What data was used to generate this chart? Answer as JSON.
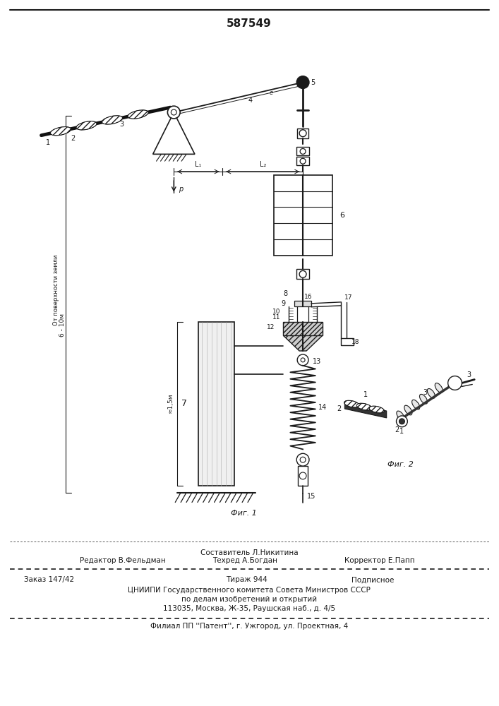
{
  "patent_number": "587549",
  "bg_color": "#ffffff",
  "line_color": "#1a1a1a",
  "fig1_caption": "Фиг. 1",
  "fig2_caption": "Фиг. 2",
  "footer_line1": "Составитель Л.Никитина",
  "footer_editor": "Редактор В.Фельдман",
  "footer_tech": "Техред А.Богдан",
  "footer_corrector": "Корректор Е.Папп",
  "footer_order": "Заказ 147/42",
  "footer_print": "Тираж 944",
  "footer_subscription": "Подписное",
  "footer_org": "ЦНИИПИ Государственного комитета Совета Министров СССР",
  "footer_dept": "по делам изобретений и открытий",
  "footer_addr": "113035, Москва, Ж-35, Раушская наб., д. 4/5",
  "footer_branch": "Филиал ПП ''Патент'', г. Ужгород, ул. Проектная, 4",
  "left_annotation": "От поверхности земли",
  "left_dim1": "6 - 10м",
  "left_dim2": "≈1,5м"
}
